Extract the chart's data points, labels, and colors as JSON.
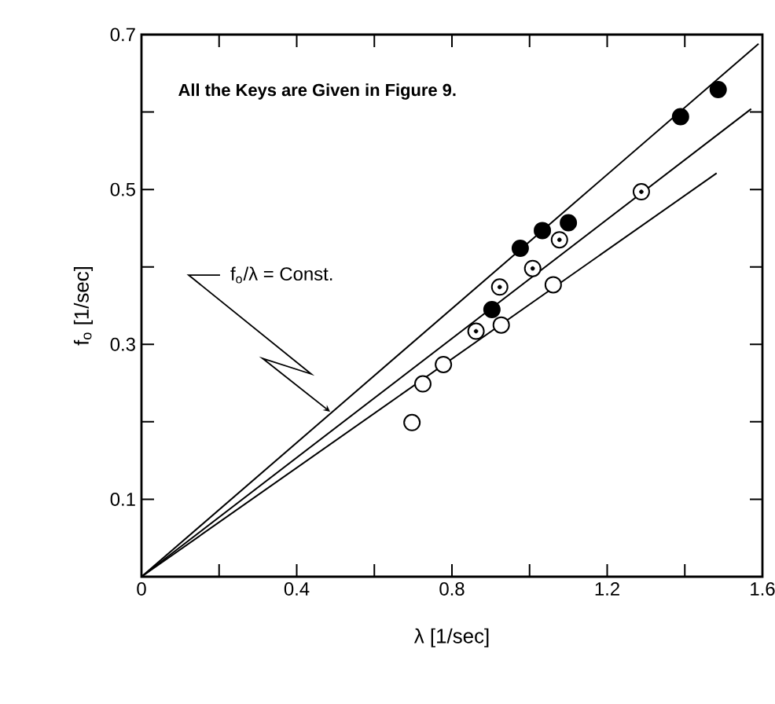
{
  "chart_data": {
    "type": "scatter",
    "xlabel": "λ [1/sec]",
    "ylabel": "f$_{o}$ [1/sec]",
    "xlim": [
      0,
      1.6
    ],
    "ylim": [
      0,
      0.7
    ],
    "xticks": [
      0,
      {
        "value": 0.2,
        "label": null
      },
      0.4,
      {
        "value": 0.6,
        "label": null
      },
      0.8,
      {
        "value": 1.0,
        "label": null
      },
      1.2,
      {
        "value": 1.4,
        "label": null
      },
      1.6
    ],
    "yticks": [
      {
        "value": 0,
        "label": null
      },
      0.1,
      {
        "value": 0.2,
        "label": null
      },
      0.3,
      {
        "value": 0.4,
        "label": null
      },
      0.5,
      {
        "value": 0.6,
        "label": null
      },
      0.7
    ],
    "grid": false,
    "annotations": [
      "All the Keys are Given in Figure 9.",
      {
        "text": "f$_{o}$/λ = Const.",
        "x": 0.486,
        "y": 0.213
      }
    ],
    "series": [
      {
        "marker": "circle",
        "color": "#000000",
        "x": [
          0.903,
          0.976,
          1.033,
          1.1,
          1.389,
          1.486
        ],
        "values": [
          0.345,
          0.424,
          0.447,
          0.457,
          0.594,
          0.629
        ]
      },
      {
        "marker": "circle",
        "color": "#000000",
        "x": [
          0.862,
          0.923,
          1.008,
          1.077,
          1.288
        ],
        "values": [
          0.317,
          0.374,
          0.398,
          0.435,
          0.497
        ]
      },
      {
        "marker": "circle",
        "color": "#000000",
        "x": [
          0.697,
          0.725,
          0.778,
          0.927,
          1.061
        ],
        "values": [
          0.199,
          0.249,
          0.274,
          0.325,
          0.377
        ]
      },
      {
        "type": "line",
        "marker": "none",
        "color": "#000000",
        "x": [
          0,
          1.59
        ],
        "values": [
          0,
          0.688
        ]
      },
      {
        "type": "line",
        "marker": "none",
        "color": "#000000",
        "x": [
          0,
          1.571
        ],
        "values": [
          0,
          0.604
        ]
      },
      {
        "type": "line",
        "marker": "none",
        "color": "#000000",
        "x": [
          0,
          1.482
        ],
        "values": [
          0,
          0.521
        ]
      }
    ]
  }
}
